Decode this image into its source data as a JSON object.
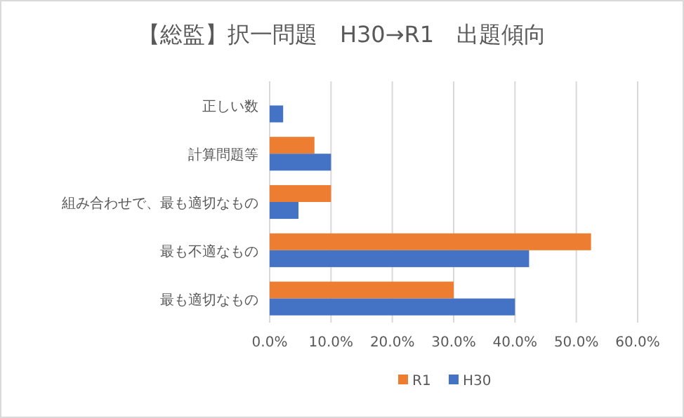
{
  "chart_data": {
    "type": "bar",
    "orientation": "horizontal",
    "title": "【総監】択一問題　H30→R1　出題傾向",
    "categories": [
      "正しい数",
      "計算問題等",
      "組み合わせで、最も適切なもの",
      "最も不適なもの",
      "最も適切なもの"
    ],
    "series": [
      {
        "name": "R1",
        "color": "#ed7d31",
        "values": [
          0,
          7.3,
          10,
          52.4,
          30
        ]
      },
      {
        "name": "H30",
        "color": "#4472c4",
        "values": [
          2.2,
          10,
          4.7,
          42.3,
          40
        ]
      }
    ],
    "xlim": [
      0,
      60
    ],
    "xticks": [
      {
        "value": 0,
        "label": "0.0%"
      },
      {
        "value": 10,
        "label": "10.0%"
      },
      {
        "value": 20,
        "label": "20.0%"
      },
      {
        "value": 30,
        "label": "30.0%"
      },
      {
        "value": 40,
        "label": "40.0%"
      },
      {
        "value": 50,
        "label": "50.0%"
      },
      {
        "value": 60,
        "label": "60.0%"
      }
    ],
    "grid": "x",
    "legend": "bottom"
  }
}
